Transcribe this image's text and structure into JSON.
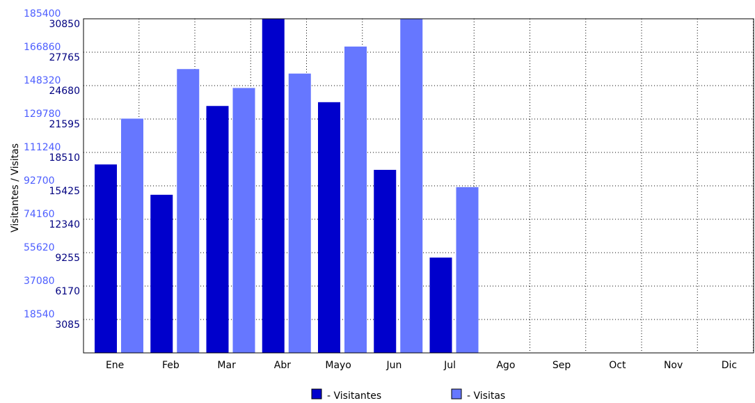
{
  "chart_data": {
    "type": "bar",
    "ylabel": "Visitantes / Visitas",
    "categories": [
      "Ene",
      "Feb",
      "Mar",
      "Abr",
      "Mayo",
      "Jun",
      "Jul",
      "Ago",
      "Sep",
      "Oct",
      "Nov",
      "Dic"
    ],
    "series": [
      {
        "name": "Visitantes",
        "color": "#0000cc",
        "axis": "inner",
        "values": [
          17400,
          14600,
          22800,
          30850,
          23150,
          16900,
          8800,
          0,
          0,
          0,
          0,
          0
        ]
      },
      {
        "name": "Visitas",
        "color": "#6677ff",
        "axis": "outer",
        "values": [
          130000,
          157500,
          147000,
          155000,
          170000,
          185400,
          92000,
          0,
          0,
          0,
          0,
          0
        ]
      }
    ],
    "inner_axis": {
      "ylim": [
        0,
        30850
      ],
      "ticks": [
        3085,
        6170,
        9255,
        12340,
        15425,
        18510,
        21595,
        24680,
        27765,
        30850
      ],
      "color": "#000080"
    },
    "outer_axis": {
      "ylim": [
        0,
        185400
      ],
      "ticks": [
        18540,
        37080,
        55620,
        74160,
        92700,
        111240,
        129780,
        148320,
        166860,
        185400
      ],
      "color": "#4d5eff"
    },
    "grid": true,
    "legend": [
      {
        "marker": "■",
        "label": "- Visitantes",
        "color": "#0000cc"
      },
      {
        "marker": "■",
        "label": "- Visitas",
        "color": "#6677ff"
      }
    ]
  }
}
